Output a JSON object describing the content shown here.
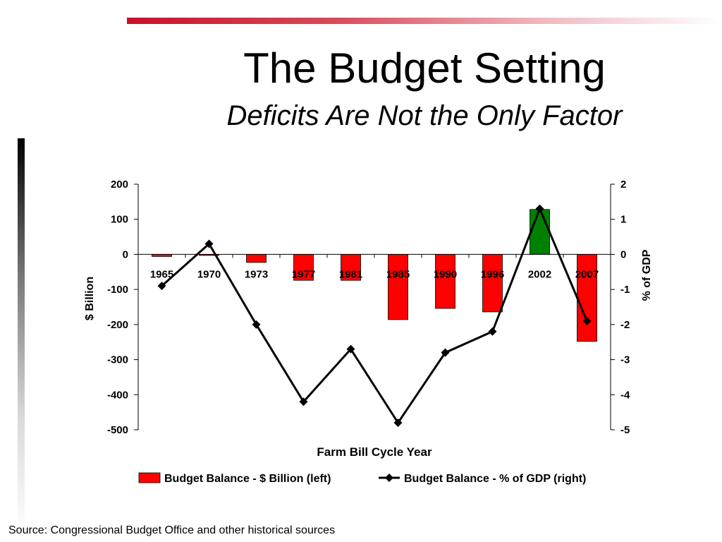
{
  "slide": {
    "title": "The Budget Setting",
    "subtitle": "Deficits Are Not the Only Factor",
    "source": "Source: Congressional Budget Office and other historical sources"
  },
  "colors": {
    "bar_negative": "#ff0000",
    "bar_positive": "#008000",
    "line": "#000000",
    "accent": "#c8102e"
  },
  "chart_data": {
    "type": "bar",
    "title": "",
    "xlabel": "Farm Bill Cycle Year",
    "ylabel": "$ Billion",
    "y2label": "% of GDP",
    "ylim": [
      -500,
      200
    ],
    "y2lim": [
      -5,
      2
    ],
    "yticks": [
      200,
      100,
      0,
      -100,
      -200,
      -300,
      -400,
      -500
    ],
    "y2ticks": [
      2,
      1,
      0,
      -1,
      -2,
      -3,
      -4,
      -5
    ],
    "categories": [
      "1965",
      "1970",
      "1973",
      "1977",
      "1981",
      "1985",
      "1990",
      "1996",
      "2002",
      "2007"
    ],
    "grid": false,
    "legend_position": "bottom",
    "series": [
      {
        "name": "Budget Balance - $ Billion (left)",
        "type": "bar",
        "axis": "left",
        "values": [
          -6,
          -2,
          -23,
          -74,
          -74,
          -186,
          -154,
          -164,
          128,
          -248
        ]
      },
      {
        "name": "Budget Balance - % of GDP (right)",
        "type": "line",
        "axis": "right",
        "values": [
          -0.9,
          0.3,
          -2.0,
          -4.2,
          -2.7,
          -4.8,
          -2.8,
          -2.2,
          1.3,
          -1.9
        ]
      }
    ]
  }
}
